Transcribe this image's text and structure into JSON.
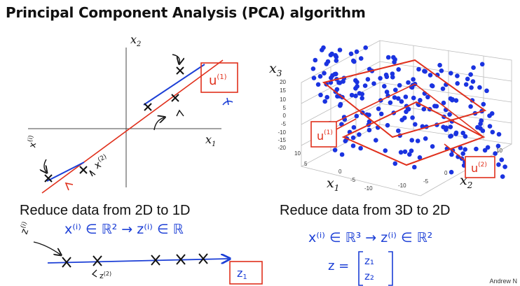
{
  "slide": {
    "title": "Principal Component Analysis (PCA) algorithm",
    "credit": "Andrew N"
  },
  "left_panel": {
    "x_axis_label": "x",
    "x_axis_sub": "1",
    "y_axis_label": "x",
    "y_axis_sub": "2",
    "direction_label": "u",
    "direction_sup": "(1)",
    "point_label": "x",
    "point_sup": "(i)",
    "point_label_2": "x",
    "point_sup_2": "(2)",
    "caption": "Reduce data from 2D to 1D",
    "notation": "x⁽ⁱ⁾ ∈ ℝ²  →  z⁽ⁱ⁾ ∈ ℝ",
    "line_point_label": "z",
    "line_point_sup": "(i)",
    "line_point_label_2": "z",
    "line_point_sup_2": "(2)",
    "axis_label": "z",
    "axis_sub": "1"
  },
  "right_panel": {
    "z_axis_label": "x",
    "z_axis_sub": "3",
    "x_axis_label": "x",
    "x_axis_sub": "1",
    "y_axis_label": "x",
    "y_axis_sub": "2",
    "u1_label": "u",
    "u1_sup": "(1)",
    "u2_label": "u",
    "u2_sup": "(2)",
    "z_ticks": [
      "20",
      "15",
      "10",
      "5",
      "0",
      "-5",
      "-10",
      "-15",
      "-20"
    ],
    "x1_ticks": [
      "10",
      "5",
      "0",
      "-5",
      "-10"
    ],
    "x2_ticks": [
      "-10",
      "-5",
      "0",
      "5",
      "10"
    ],
    "caption": "Reduce data from 3D to 2D",
    "notation": "x⁽ⁱ⁾ ∈ ℝ³  →  z⁽ⁱ⁾ ∈ ℝ²",
    "vector_lhs": "z =",
    "vector_entries": [
      "z₁",
      "z₂"
    ]
  },
  "colors": {
    "ink": "#111111",
    "hand_blue": "#1c3fd6",
    "hand_red": "#e0301c",
    "dot_blue": "#1a33e0"
  }
}
